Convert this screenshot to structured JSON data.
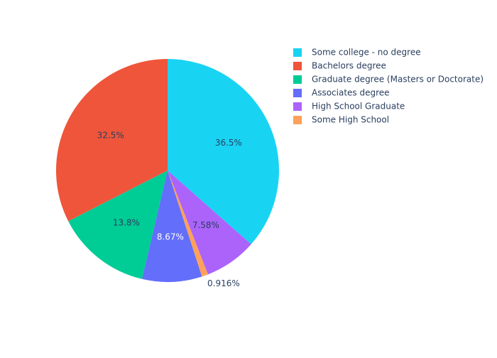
{
  "chart_data": {
    "type": "pie",
    "title": "",
    "labels": [
      "Some college - no degree",
      "Bachelors degree",
      "Graduate degree (Masters or Doctorate)",
      "Associates degree",
      "High School Graduate",
      "Some High School"
    ],
    "values": [
      36.5,
      32.5,
      13.8,
      8.67,
      7.58,
      0.916
    ],
    "percent_labels": [
      "36.5%",
      "32.5%",
      "13.8%",
      "8.67%",
      "7.58%",
      "0.916%"
    ],
    "colors": [
      "#19d3f3",
      "#ef553b",
      "#00cc96",
      "#636efa",
      "#ab63fa",
      "#ffa15a"
    ],
    "label_text_colors": [
      "#2a3f5f",
      "#2a3f5f",
      "#2a3f5f",
      "#ffffff",
      "#2a3f5f",
      "#2a3f5f"
    ],
    "slice_order": [
      0,
      4,
      5,
      3,
      2,
      1
    ],
    "direction": "clockwise",
    "start_angle": "top",
    "outside_labels": [
      false,
      false,
      false,
      false,
      false,
      true
    ],
    "legend": {
      "position": "top-right"
    }
  }
}
